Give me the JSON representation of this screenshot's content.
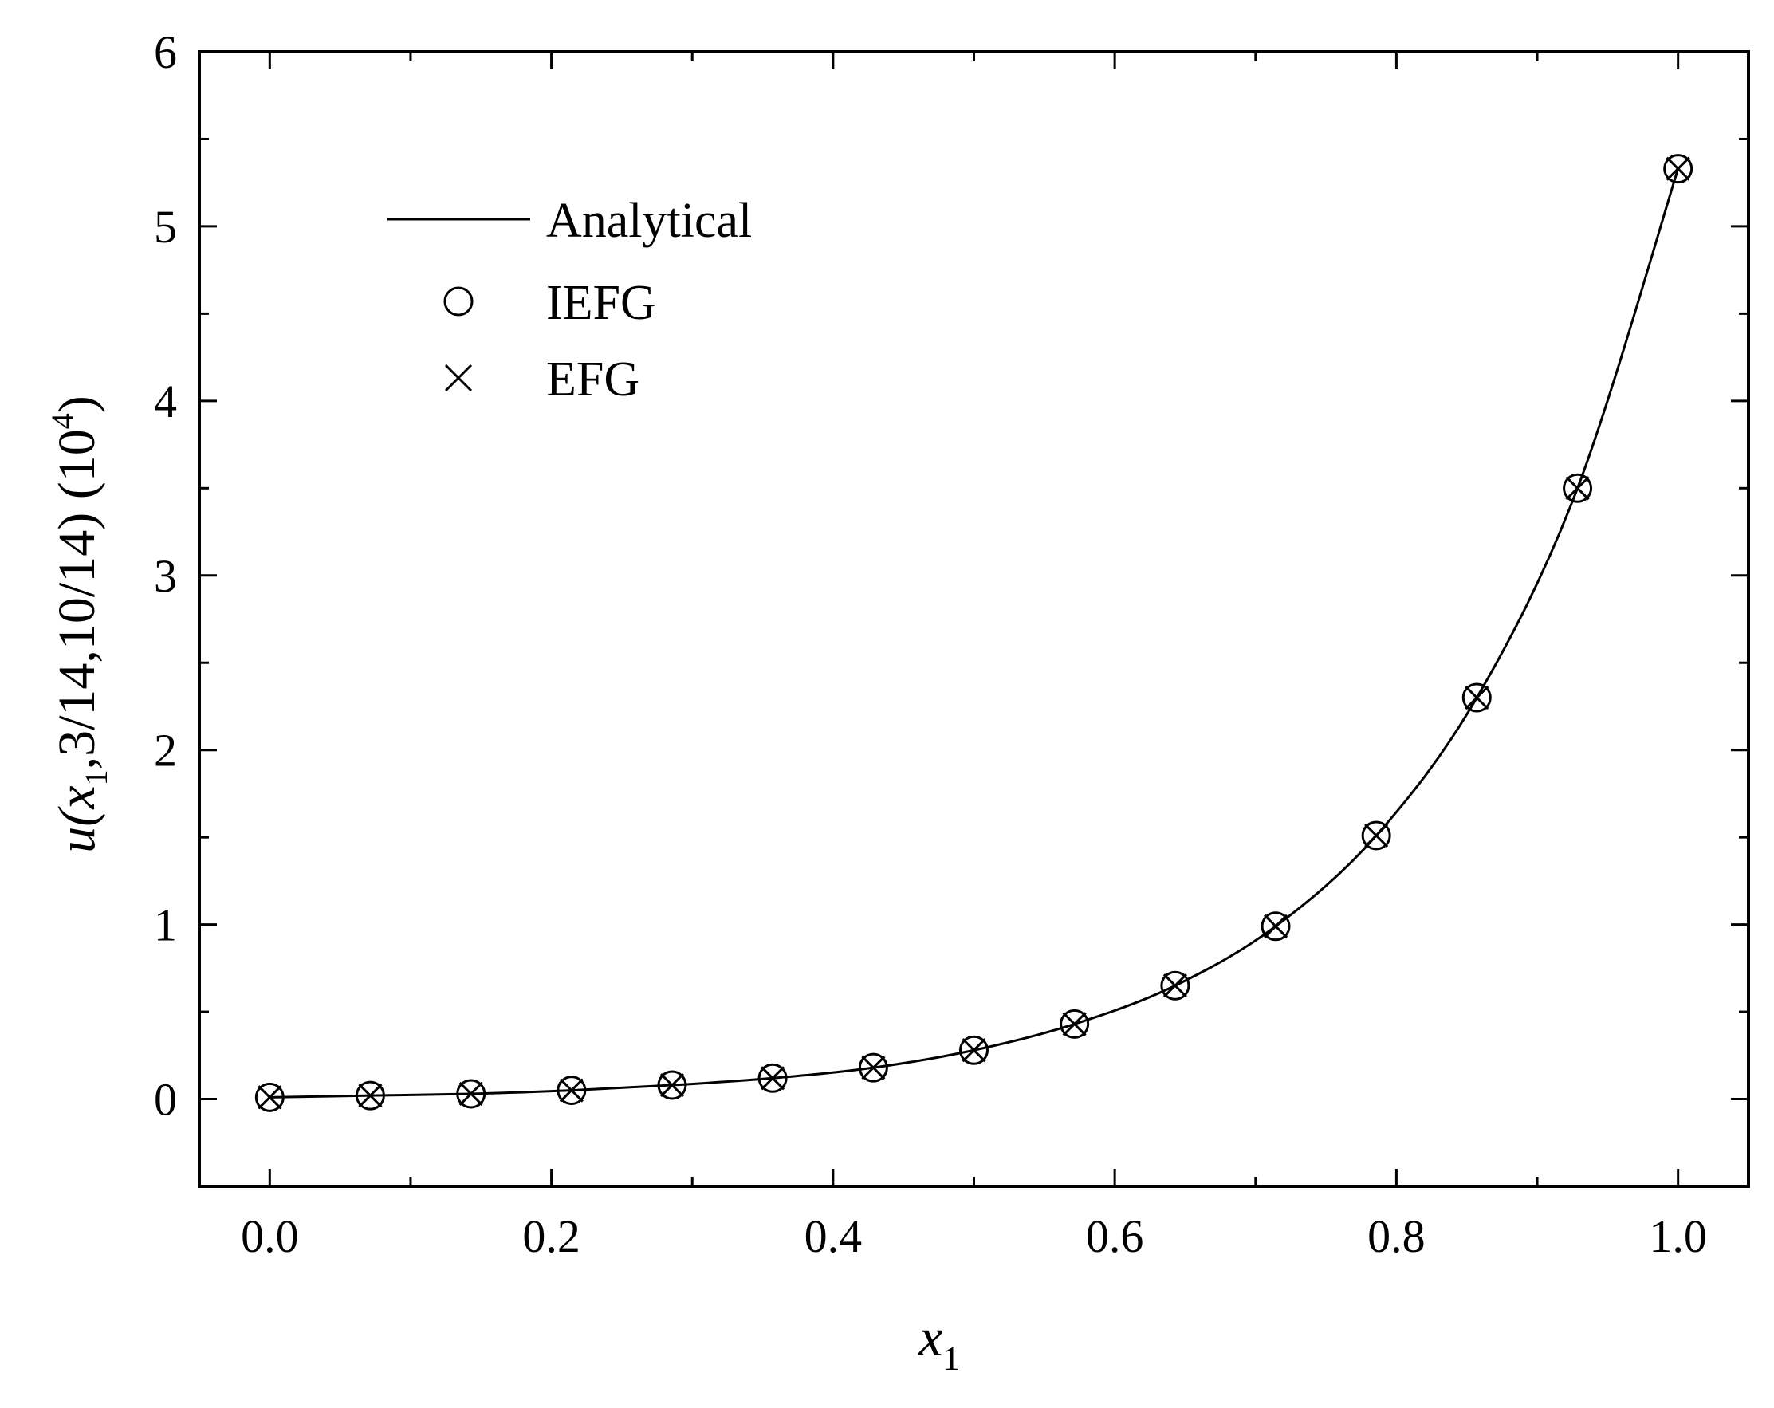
{
  "chart_data": {
    "type": "line",
    "title": "",
    "xlabel": {
      "main": "x",
      "sub": "1"
    },
    "ylabel": {
      "prefix": "u(x",
      "sub": "1",
      "suffix": ",3/14,10/14) (10",
      "sup": "4",
      "close": ")"
    },
    "xlim": [
      -0.05,
      1.05
    ],
    "ylim": [
      -0.5,
      6
    ],
    "xticks": [
      "0.0",
      "0.2",
      "0.4",
      "0.6",
      "0.8",
      "1.0"
    ],
    "yticks": [
      "0",
      "1",
      "2",
      "3",
      "4",
      "5",
      "6"
    ],
    "grid": false,
    "legend_position": "top-left",
    "series": [
      {
        "name": "Analytical",
        "style": "line",
        "x": [
          0,
          0.0714,
          0.1429,
          0.2143,
          0.2857,
          0.3571,
          0.4286,
          0.5,
          0.5714,
          0.6429,
          0.7143,
          0.7857,
          0.8571,
          0.9286,
          1.0
        ],
        "values": [
          0.01,
          0.02,
          0.03,
          0.05,
          0.08,
          0.12,
          0.18,
          0.28,
          0.43,
          0.65,
          0.99,
          1.51,
          2.3,
          3.5,
          5.33
        ]
      },
      {
        "name": "IEFG",
        "style": "circle",
        "x": [
          0,
          0.0714,
          0.1429,
          0.2143,
          0.2857,
          0.3571,
          0.4286,
          0.5,
          0.5714,
          0.6429,
          0.7143,
          0.7857,
          0.8571,
          0.9286,
          1.0
        ],
        "values": [
          0.01,
          0.02,
          0.03,
          0.05,
          0.08,
          0.12,
          0.18,
          0.28,
          0.43,
          0.65,
          0.99,
          1.51,
          2.3,
          3.5,
          5.33
        ]
      },
      {
        "name": "EFG",
        "style": "cross",
        "x": [
          0,
          0.0714,
          0.1429,
          0.2143,
          0.2857,
          0.3571,
          0.4286,
          0.5,
          0.5714,
          0.6429,
          0.7143,
          0.7857,
          0.8571,
          0.9286,
          1.0
        ],
        "values": [
          0.01,
          0.02,
          0.03,
          0.05,
          0.08,
          0.12,
          0.18,
          0.28,
          0.43,
          0.65,
          0.99,
          1.51,
          2.3,
          3.5,
          5.33
        ]
      }
    ]
  }
}
